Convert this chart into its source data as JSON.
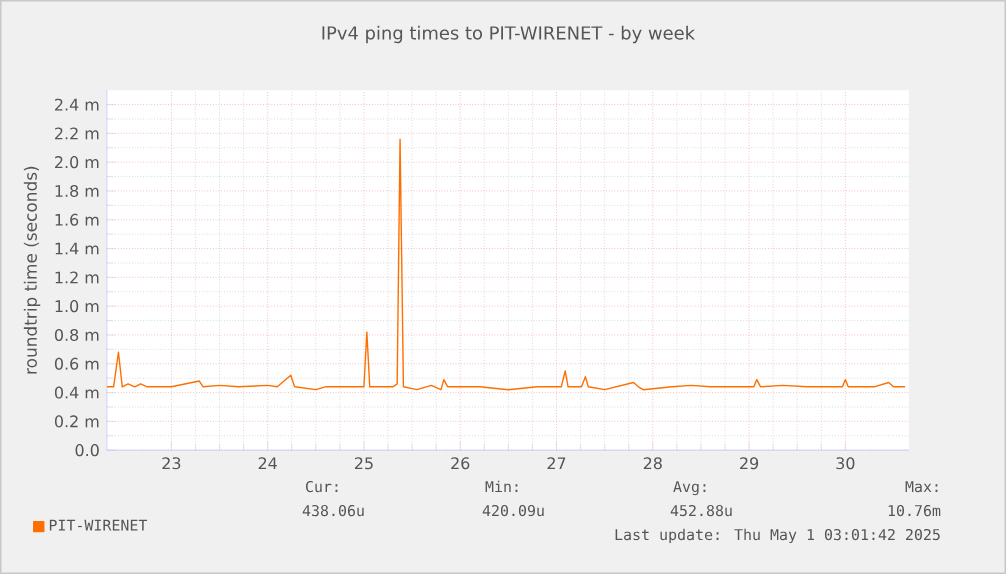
{
  "chart_data": {
    "type": "line",
    "title": "IPv4 ping times to PIT-WIRENET - by week",
    "ylabel": "roundtrip time (seconds)",
    "x": [
      22.33,
      22.4,
      22.45,
      22.49,
      22.55,
      22.62,
      22.68,
      22.75,
      23.0,
      23.29,
      23.33,
      23.5,
      23.7,
      24.0,
      24.1,
      24.24,
      24.28,
      24.5,
      24.6,
      25.0,
      25.03,
      25.06,
      25.3,
      25.345,
      25.375,
      25.41,
      25.55,
      25.7,
      25.8,
      25.83,
      25.87,
      26.2,
      26.5,
      26.8,
      27.05,
      27.09,
      27.12,
      27.26,
      27.3,
      27.33,
      27.5,
      27.8,
      27.85,
      27.9,
      28.2,
      28.4,
      28.6,
      29.05,
      29.08,
      29.12,
      29.35,
      29.6,
      29.97,
      30.0,
      30.03,
      30.3,
      30.45,
      30.5,
      30.62
    ],
    "series": [
      {
        "name": "PIT-WIRENET",
        "color": "#ff6f00",
        "values": [
          0.44,
          0.44,
          0.68,
          0.44,
          0.46,
          0.44,
          0.46,
          0.44,
          0.44,
          0.48,
          0.44,
          0.45,
          0.44,
          0.45,
          0.44,
          0.52,
          0.44,
          0.42,
          0.44,
          0.44,
          0.82,
          0.44,
          0.44,
          0.46,
          2.16,
          0.44,
          0.42,
          0.45,
          0.42,
          0.49,
          0.44,
          0.44,
          0.42,
          0.44,
          0.44,
          0.55,
          0.44,
          0.44,
          0.51,
          0.44,
          0.42,
          0.47,
          0.44,
          0.42,
          0.44,
          0.45,
          0.44,
          0.44,
          0.49,
          0.44,
          0.45,
          0.44,
          0.44,
          0.49,
          0.44,
          0.44,
          0.47,
          0.44,
          0.44
        ]
      }
    ],
    "xlim": [
      22.33,
      30.66
    ],
    "ylim": [
      0,
      2.5
    ],
    "xticks": [
      23,
      24,
      25,
      26,
      27,
      28,
      29,
      30
    ],
    "yticks": [
      {
        "value": 0,
        "label": "0.0"
      },
      {
        "value": 0.2,
        "label": "0.2 m"
      },
      {
        "value": 0.4,
        "label": "0.4 m"
      },
      {
        "value": 0.6,
        "label": "0.6 m"
      },
      {
        "value": 0.8,
        "label": "0.8 m"
      },
      {
        "value": 1.0,
        "label": "1.0 m"
      },
      {
        "value": 1.2,
        "label": "1.2 m"
      },
      {
        "value": 1.4,
        "label": "1.4 m"
      },
      {
        "value": 1.6,
        "label": "1.6 m"
      },
      {
        "value": 1.8,
        "label": "1.8 m"
      },
      {
        "value": 2.0,
        "label": "2.0 m"
      },
      {
        "value": 2.2,
        "label": "2.2 m"
      },
      {
        "value": 2.4,
        "label": "2.4 m"
      }
    ],
    "grid": true,
    "legend": "bottom",
    "marker": "none",
    "line_style": "solid",
    "annotations": [
      "Cur:",
      "Min:",
      "Avg:",
      "Max:",
      "438.06u",
      "420.09u",
      "452.88u",
      "10.76m",
      "Last update: Thu May  1 03:01:42 2025"
    ]
  }
}
